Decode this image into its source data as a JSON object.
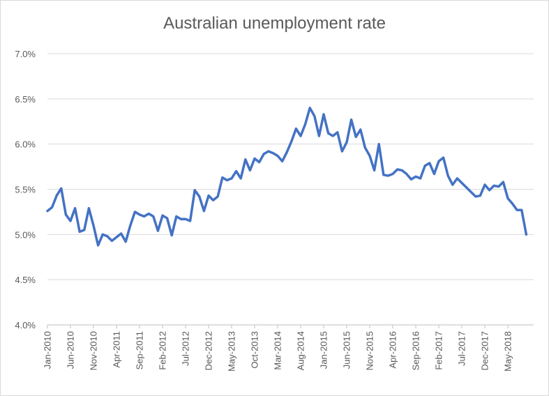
{
  "chart_data": {
    "type": "line",
    "title": "Australian unemployment rate",
    "xlabel": "",
    "ylabel": "",
    "ylim": [
      4.0,
      7.0
    ],
    "y_ticks": [
      "4.0%",
      "4.5%",
      "5.0%",
      "5.5%",
      "6.0%",
      "6.5%",
      "7.0%"
    ],
    "x_tick_labels": [
      "Jan-2010",
      "Jun-2010",
      "Nov-2010",
      "Apr-2011",
      "Sep-2011",
      "Feb-2012",
      "Jul-2012",
      "Dec-2012",
      "May-2013",
      "Oct-2013",
      "Mar-2014",
      "Aug-2014",
      "Jan-2015",
      "Jun-2015",
      "Nov-2015",
      "Apr-2016",
      "Sep-2016",
      "Feb-2017",
      "Jul-2017",
      "Dec-2017",
      "May-2018"
    ],
    "x_start": "Jan-2010",
    "x_end": "Oct-2018",
    "grid": "horizontal",
    "legend": "none",
    "series": [
      {
        "color": "#4472c4",
        "values": [
          5.26,
          5.3,
          5.43,
          5.51,
          5.22,
          5.15,
          5.29,
          5.03,
          5.05,
          5.29,
          5.1,
          4.88,
          5.0,
          4.98,
          4.93,
          4.97,
          5.01,
          4.92,
          5.1,
          5.25,
          5.22,
          5.2,
          5.23,
          5.2,
          5.04,
          5.21,
          5.18,
          4.99,
          5.2,
          5.17,
          5.17,
          5.15,
          5.49,
          5.42,
          5.26,
          5.43,
          5.38,
          5.42,
          5.63,
          5.6,
          5.62,
          5.7,
          5.62,
          5.83,
          5.71,
          5.84,
          5.8,
          5.89,
          5.92,
          5.9,
          5.87,
          5.81,
          5.91,
          6.03,
          6.17,
          6.09,
          6.22,
          6.4,
          6.31,
          6.09,
          6.33,
          6.12,
          6.09,
          6.13,
          5.92,
          6.02,
          6.27,
          6.08,
          6.16,
          5.96,
          5.87,
          5.71,
          6.0,
          5.66,
          5.65,
          5.67,
          5.72,
          5.71,
          5.67,
          5.61,
          5.64,
          5.62,
          5.76,
          5.79,
          5.67,
          5.81,
          5.85,
          5.65,
          5.55,
          5.62,
          5.57,
          5.52,
          5.47,
          5.42,
          5.43,
          5.55,
          5.49,
          5.54,
          5.53,
          5.58,
          5.4,
          5.34,
          5.27,
          5.27,
          5.0
        ]
      }
    ]
  }
}
